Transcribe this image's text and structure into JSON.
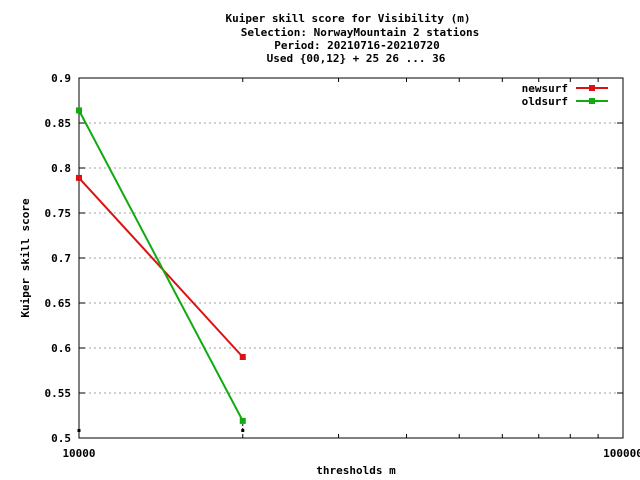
{
  "chart_data": {
    "type": "line",
    "title_lines": [
      "Kuiper skill score  for Visibility (m)",
      "Selection: NorwayMountain      2 stations",
      "Period: 20210716-20210720",
      "Used {00,12} + 25 26 ... 36"
    ],
    "xlabel": "thresholds m",
    "ylabel": "Kuiper skill score",
    "x_scale": "log",
    "xlim": [
      10000,
      100000
    ],
    "ylim": [
      0.5,
      0.9
    ],
    "x_tick_labels": [
      "10000",
      "100000"
    ],
    "y_ticks": [
      0.5,
      0.55,
      0.6,
      0.65,
      0.7,
      0.75,
      0.8,
      0.85,
      0.9
    ],
    "y_tick_labels": [
      "0.5",
      "0.55",
      "0.6",
      "0.65",
      "0.7",
      "0.75",
      "0.8",
      "0.85",
      "0.9"
    ],
    "grid": true,
    "legend_position": "top-right",
    "series": [
      {
        "name": "newsurf",
        "color": "#dd1111",
        "x": [
          10000,
          20000
        ],
        "y": [
          0.789,
          0.59
        ]
      },
      {
        "name": "oldsurf",
        "color": "#11aa11",
        "x": [
          10000,
          20000
        ],
        "y": [
          0.864,
          0.519
        ]
      }
    ]
  }
}
